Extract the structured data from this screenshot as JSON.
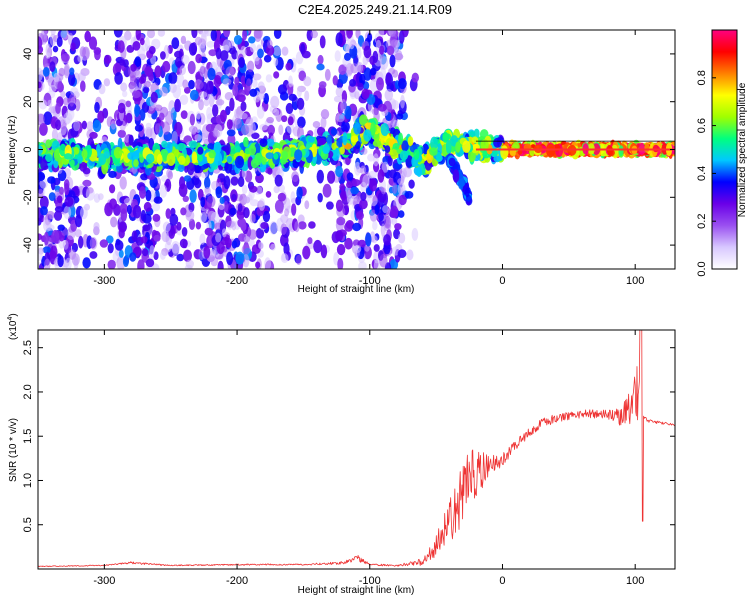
{
  "title": "C2E4.2025.249.21.14.R09",
  "chart_data": [
    {
      "type": "heatmap",
      "xlabel": "Height of straight line (km)",
      "ylabel": "Frequency (Hz)",
      "xlim": [
        -350,
        130
      ],
      "ylim": [
        -50,
        50
      ],
      "xticks": [
        -300,
        -200,
        -100,
        0,
        100
      ],
      "yticks": [
        -40,
        -20,
        0,
        20,
        40
      ],
      "colorbar": {
        "label": "Normalized spectral amplitude",
        "range": [
          0,
          1
        ],
        "ticks": [
          0.0,
          0.2,
          0.4,
          0.6,
          0.8
        ],
        "tick_labels": [
          "0.0",
          "0.2",
          "0.4",
          "0.6",
          "0.8"
        ],
        "colors": [
          "#ffffff",
          "#d8c8ff",
          "#9a50f0",
          "#6a00e8",
          "#0000ff",
          "#00c8ff",
          "#00ff80",
          "#a0ff00",
          "#ffff00",
          "#ff8000",
          "#ff0000",
          "#ff0080"
        ]
      },
      "ridge": [
        {
          "x": -340,
          "y": -2
        },
        {
          "x": -300,
          "y": -3
        },
        {
          "x": -250,
          "y": -3
        },
        {
          "x": -200,
          "y": -3
        },
        {
          "x": -150,
          "y": -1
        },
        {
          "x": -120,
          "y": 1
        },
        {
          "x": -100,
          "y": 9
        },
        {
          "x": -80,
          "y": 2
        },
        {
          "x": -60,
          "y": -5
        },
        {
          "x": -40,
          "y": 3
        },
        {
          "x": -20,
          "y": 1
        },
        {
          "x": 0,
          "y": 0
        },
        {
          "x": 130,
          "y": 0
        }
      ],
      "tail_branch": [
        {
          "x": -40,
          "y": -4
        },
        {
          "x": -30,
          "y": -14
        },
        {
          "x": -25,
          "y": -21
        }
      ]
    },
    {
      "type": "line",
      "xlabel": "Height of straight line (km)",
      "ylabel": "SNR (10 * v/v)",
      "exponent_label": "(x10",
      "exponent_power": "4",
      "exponent_close": ")",
      "xlim": [
        -350,
        130
      ],
      "ylim": [
        0,
        27000
      ],
      "xticks": [
        -300,
        -200,
        -100,
        0,
        100
      ],
      "yticks": [
        5000,
        10000,
        15000,
        20000,
        25000
      ],
      "ytick_labels": [
        "0.5",
        "1.0",
        "1.5",
        "2.0",
        "2.5"
      ],
      "series": [
        {
          "name": "SNR",
          "color": "#ee3333",
          "x": [
            -350,
            -300,
            -280,
            -250,
            -200,
            -150,
            -120,
            -110,
            -100,
            -80,
            -60,
            -50,
            -40,
            -30,
            -20,
            -10,
            0,
            10,
            20,
            30,
            40,
            50,
            60,
            70,
            80,
            90,
            95,
            100,
            104,
            106,
            110,
            120,
            130
          ],
          "values": [
            300,
            400,
            700,
            400,
            500,
            500,
            700,
            1300,
            500,
            400,
            800,
            2500,
            5500,
            8500,
            11000,
            11500,
            12500,
            14000,
            15500,
            16500,
            17000,
            17300,
            17500,
            17500,
            17400,
            17300,
            18000,
            19500,
            22000,
            17000,
            16700,
            16500,
            16300
          ],
          "noise": [
            50,
            60,
            120,
            60,
            80,
            80,
            150,
            400,
            100,
            100,
            400,
            1500,
            2500,
            4000,
            3000,
            1500,
            800,
            700,
            600,
            500,
            500,
            500,
            500,
            500,
            600,
            1200,
            2000,
            3000,
            5000,
            400,
            200,
            150,
            150
          ]
        }
      ]
    }
  ]
}
